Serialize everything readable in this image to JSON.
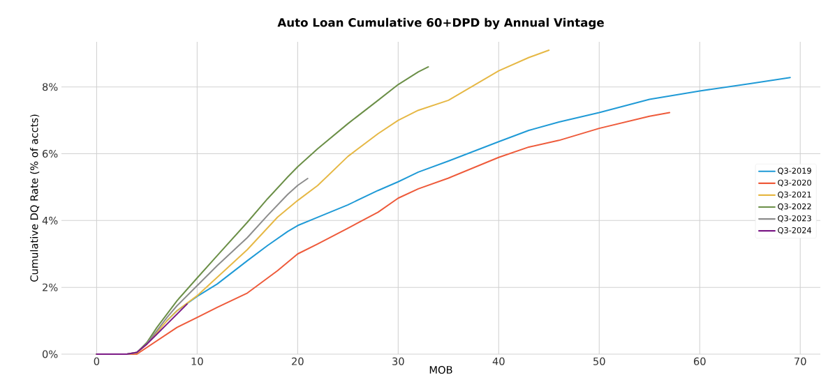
{
  "chart_data": {
    "type": "line",
    "title": "Auto Loan Cumulative 60+DPD by Annual Vintage",
    "xlabel": "MOB",
    "ylabel": "Cumulative DQ Rate (% of accts)",
    "xlim": [
      -3.5,
      72
    ],
    "xticks": [
      0,
      10,
      20,
      30,
      40,
      50,
      60,
      70
    ],
    "ylim": [
      0,
      9.35
    ],
    "yticks": [
      {
        "value": 0,
        "label": "0%"
      },
      {
        "value": 2,
        "label": "2%"
      },
      {
        "value": 4,
        "label": "4%"
      },
      {
        "value": 6,
        "label": "6%"
      },
      {
        "value": 8,
        "label": "8%"
      }
    ],
    "grid": true,
    "legend": "right",
    "series": [
      {
        "name": "Q3-2019",
        "color": "#1f9ad6",
        "x": [
          7,
          8,
          10,
          12,
          15,
          17,
          19,
          20,
          22,
          25,
          28,
          30,
          32,
          35,
          40,
          43,
          46,
          50,
          55,
          60,
          65,
          69
        ],
        "values": [
          1.0,
          1.3,
          1.73,
          2.1,
          2.8,
          3.25,
          3.67,
          3.85,
          4.1,
          4.47,
          4.9,
          5.16,
          5.45,
          5.78,
          6.36,
          6.7,
          6.95,
          7.23,
          7.63,
          7.88,
          8.1,
          8.28
        ]
      },
      {
        "name": "Q3-2020",
        "color": "#ee5a3a",
        "x": [
          0,
          3,
          4,
          5,
          7,
          8,
          10,
          12,
          15,
          18,
          20,
          22,
          25,
          28,
          30,
          32,
          35,
          40,
          43,
          46,
          50,
          55,
          57
        ],
        "values": [
          0,
          0,
          0,
          0.2,
          0.6,
          0.8,
          1.1,
          1.4,
          1.83,
          2.5,
          3.0,
          3.3,
          3.77,
          4.25,
          4.67,
          4.95,
          5.27,
          5.89,
          6.2,
          6.4,
          6.76,
          7.12,
          7.23
        ]
      },
      {
        "name": "Q3-2021",
        "color": "#e6b845",
        "x": [
          0,
          3,
          4,
          5,
          6,
          7,
          8,
          10,
          12,
          15,
          18,
          20,
          22,
          25,
          28,
          30,
          32,
          35,
          40,
          43,
          45
        ],
        "values": [
          0,
          0,
          0.03,
          0.3,
          0.65,
          1.0,
          1.3,
          1.75,
          2.3,
          3.13,
          4.1,
          4.6,
          5.05,
          5.92,
          6.6,
          7.0,
          7.3,
          7.6,
          8.48,
          8.88,
          9.1
        ]
      },
      {
        "name": "Q3-2022",
        "color": "#6b8f47",
        "x": [
          0,
          3,
          4,
          5,
          6,
          7,
          8,
          10,
          12,
          15,
          17,
          19,
          20,
          22,
          25,
          28,
          30,
          32,
          33
        ],
        "values": [
          0,
          0,
          0.05,
          0.35,
          0.8,
          1.2,
          1.6,
          2.28,
          2.95,
          3.95,
          4.65,
          5.3,
          5.61,
          6.15,
          6.9,
          7.6,
          8.07,
          8.45,
          8.6
        ]
      },
      {
        "name": "Q3-2023",
        "color": "#8c8c8c",
        "x": [
          0,
          3,
          4,
          5,
          6,
          7,
          8,
          10,
          12,
          15,
          17,
          19,
          20,
          21
        ],
        "values": [
          0,
          0,
          0.05,
          0.32,
          0.7,
          1.1,
          1.45,
          2.05,
          2.65,
          3.49,
          4.15,
          4.78,
          5.05,
          5.26
        ]
      },
      {
        "name": "Q3-2024",
        "color": "#7b1a86",
        "x": [
          0,
          3,
          4,
          5,
          6,
          7,
          8,
          9
        ],
        "values": [
          0,
          0,
          0.05,
          0.3,
          0.6,
          0.9,
          1.2,
          1.5
        ]
      }
    ]
  }
}
